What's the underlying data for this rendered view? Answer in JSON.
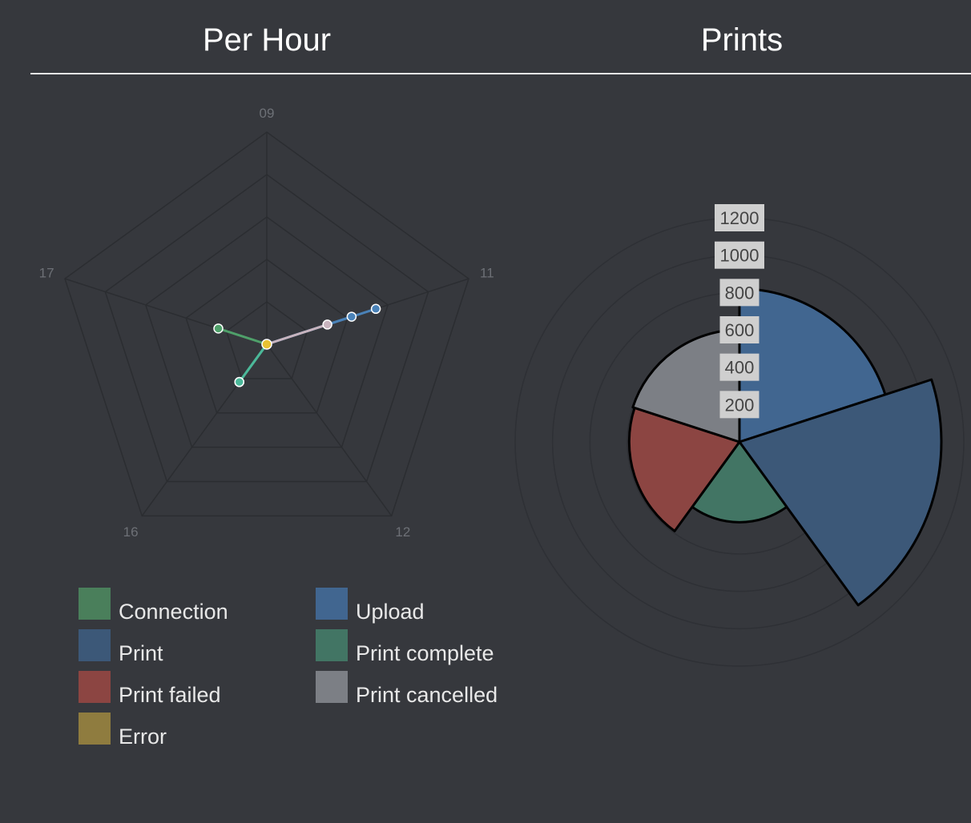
{
  "titles": {
    "left": "Per Hour",
    "right": "Prints"
  },
  "colors": {
    "connection": "#4a7f5b",
    "upload": "#416690",
    "print": "#3c5878",
    "print_complete": "#427564",
    "print_failed": "#8c4542",
    "print_cancelled": "#7c7f85",
    "error": "#8f7c3f"
  },
  "legend": [
    {
      "label": "Connection",
      "color": "#4a7f5b"
    },
    {
      "label": "Upload",
      "color": "#416690"
    },
    {
      "label": "Print",
      "color": "#3c5878"
    },
    {
      "label": "Print complete",
      "color": "#427564"
    },
    {
      "label": "Print failed",
      "color": "#8c4542"
    },
    {
      "label": "Print cancelled",
      "color": "#7c7f85"
    },
    {
      "label": "Error",
      "color": "#8f7c3f"
    }
  ],
  "chart_data": [
    {
      "type": "radar",
      "title": "Per Hour",
      "axes": [
        "09",
        "11",
        "12",
        "16",
        "17"
      ],
      "rmax": 5,
      "grid_levels": 5,
      "series": [
        {
          "name": "Connection",
          "color": "#4fa06a",
          "values": [
            0,
            0,
            0,
            1.1,
            1.2
          ]
        },
        {
          "name": "Upload",
          "color": "#4a82b8",
          "values": [
            0,
            2.7,
            0,
            0,
            0
          ]
        },
        {
          "name": "Print",
          "color": "#4a82b8",
          "values": [
            0,
            2.1,
            0,
            0,
            0
          ]
        },
        {
          "name": "Print complete",
          "color": "#4bb89a",
          "values": [
            0,
            0,
            0,
            1.1,
            0
          ]
        },
        {
          "name": "Print cancelled",
          "color": "#c8b4be",
          "values": [
            0,
            1.5,
            0,
            0,
            0
          ]
        },
        {
          "name": "Error",
          "color": "#e8c233",
          "values": [
            0,
            0,
            0,
            0,
            0
          ]
        }
      ]
    },
    {
      "type": "polarArea",
      "title": "Prints",
      "rmax": 1200,
      "ticks": [
        200,
        400,
        600,
        800,
        1000,
        1200
      ],
      "series": [
        {
          "name": "Upload",
          "value": 820,
          "color": "#416690"
        },
        {
          "name": "Print",
          "value": 1080,
          "color": "#3c5878"
        },
        {
          "name": "Print complete",
          "value": 430,
          "color": "#427564"
        },
        {
          "name": "Print failed",
          "value": 590,
          "color": "#8c4542"
        },
        {
          "name": "Print cancelled",
          "value": 600,
          "color": "#7c7f85"
        }
      ]
    }
  ]
}
